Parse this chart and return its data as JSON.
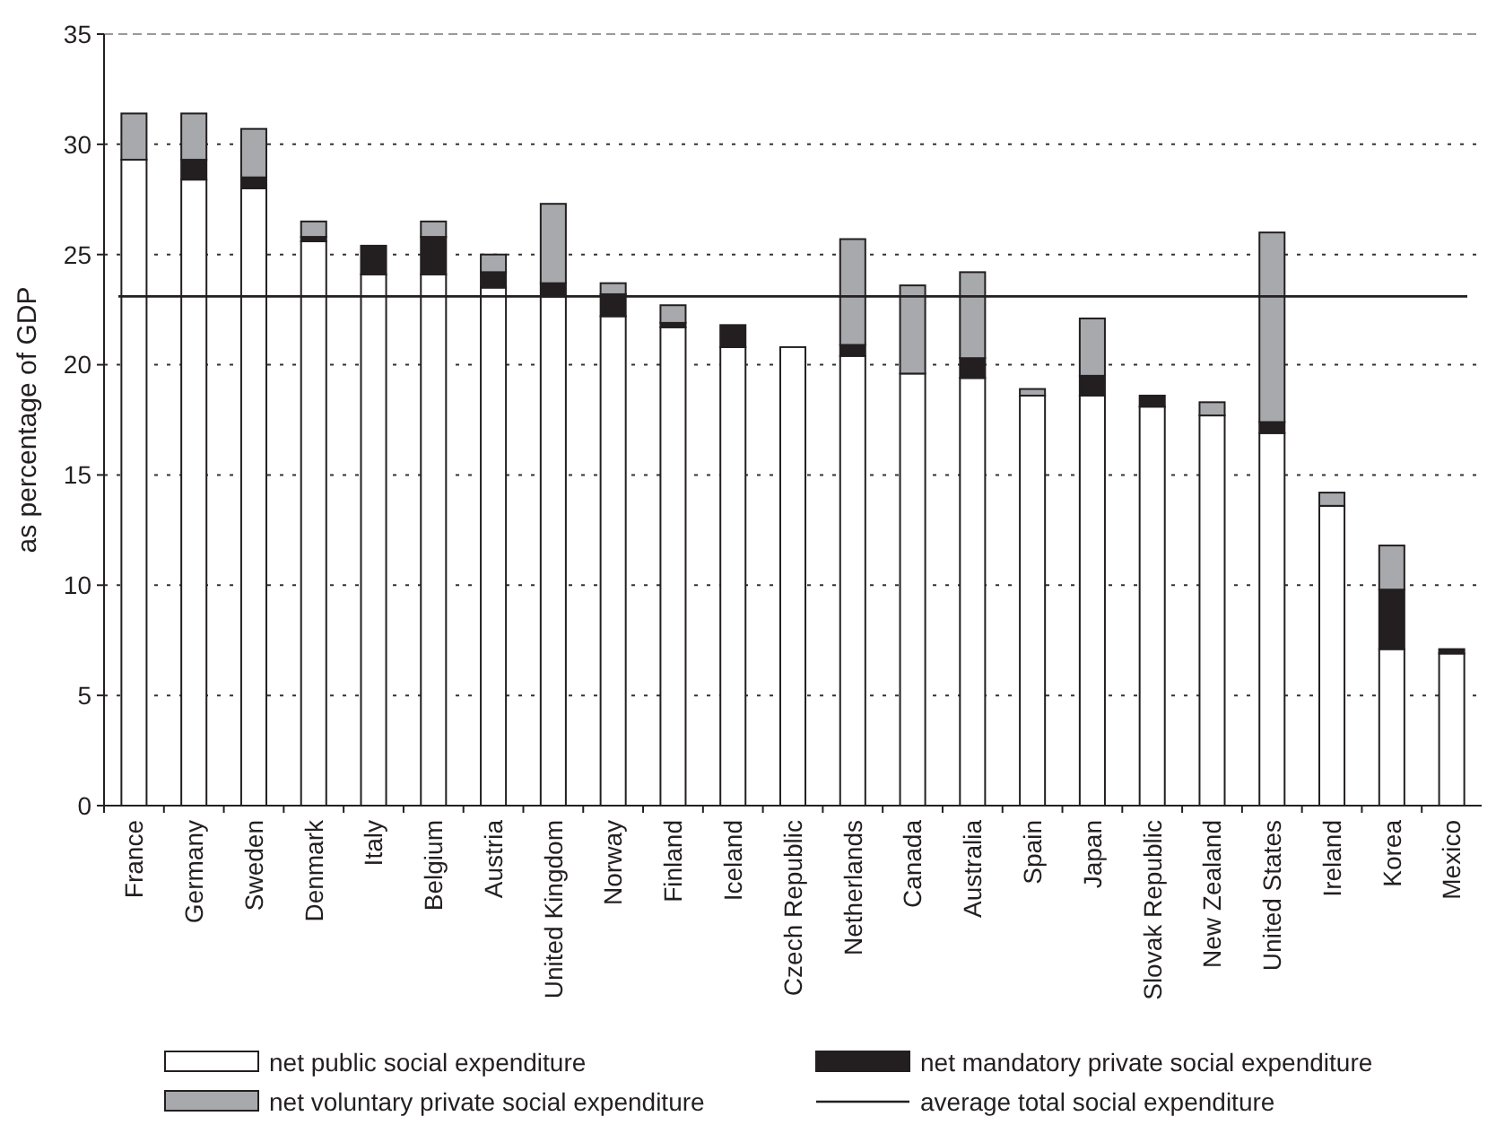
{
  "chart_data": {
    "type": "bar",
    "stacked": true,
    "ylabel": "as percentage of GDP",
    "categories": [
      "France",
      "Germany",
      "Sweden",
      "Denmark",
      "Italy",
      "Belgium",
      "Austria",
      "United Kingdom",
      "Norway",
      "Finland",
      "Iceland",
      "Czech Republic",
      "Netherlands",
      "Canada",
      "Australia",
      "Spain",
      "Japan",
      "Slovak Republic",
      "New Zealand",
      "United States",
      "Ireland",
      "Korea",
      "Mexico"
    ],
    "series": [
      {
        "name": "net public social expenditure",
        "color": "#ffffff",
        "values": [
          29.3,
          28.4,
          28.0,
          25.6,
          24.1,
          24.1,
          23.5,
          23.1,
          22.2,
          21.7,
          20.8,
          20.8,
          20.4,
          19.6,
          19.4,
          18.6,
          18.6,
          18.1,
          17.7,
          16.9,
          13.6,
          7.1,
          6.9
        ]
      },
      {
        "name": "net mandatory private social expenditure",
        "color": "#231f20",
        "values": [
          0,
          0.9,
          0.5,
          0.2,
          1.3,
          1.7,
          0.7,
          0.6,
          1.0,
          0.2,
          1.0,
          0,
          0.5,
          0,
          0.9,
          0,
          0.9,
          0.5,
          0,
          0.5,
          0,
          2.7,
          0.2
        ]
      },
      {
        "name": "net voluntary private social expenditure",
        "color": "#a7a9ac",
        "values": [
          2.1,
          2.1,
          2.2,
          0.7,
          0,
          0.7,
          0.8,
          3.6,
          0.5,
          0.8,
          0,
          0,
          4.8,
          4.0,
          3.9,
          0.3,
          2.6,
          0,
          0.6,
          8.6,
          0.6,
          2.0,
          0
        ]
      }
    ],
    "ylim": [
      0,
      35
    ],
    "yticks": [
      0,
      5,
      10,
      15,
      20,
      25,
      30,
      35
    ],
    "grid": "y",
    "legend": "bottom",
    "ref_lines": [
      {
        "axis": "y",
        "value": 23.1,
        "label": "average total social expenditure",
        "color": "#231f20",
        "line_style": "solid"
      }
    ]
  }
}
